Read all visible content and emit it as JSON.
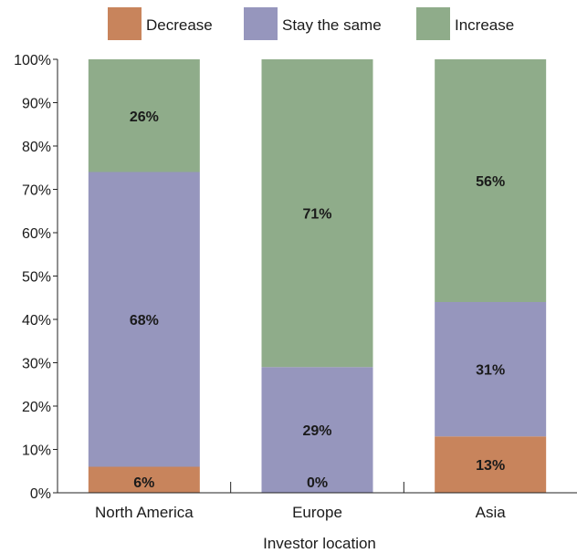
{
  "chart_data": {
    "type": "bar",
    "stacked": true,
    "categories": [
      "North America",
      "Europe",
      "Asia"
    ],
    "series": [
      {
        "name": "Decrease",
        "color": "#c8845c",
        "values": [
          6,
          0,
          13
        ]
      },
      {
        "name": "Stay the same",
        "color": "#9696bd",
        "values": [
          68,
          29,
          31
        ]
      },
      {
        "name": "Increase",
        "color": "#8fac8a",
        "values": [
          26,
          71,
          56
        ]
      }
    ],
    "data_labels": [
      [
        "6%",
        "0%",
        "13%"
      ],
      [
        "68%",
        "29%",
        "31%"
      ],
      [
        "26%",
        "71%",
        "56%"
      ]
    ],
    "xlabel": "Investor location",
    "ylabel": "",
    "ylim": [
      0,
      100
    ],
    "yticks": [
      "0%",
      "10%",
      "20%",
      "30%",
      "40%",
      "50%",
      "60%",
      "70%",
      "80%",
      "90%",
      "100%"
    ],
    "legend_position": "top",
    "grid": false
  }
}
